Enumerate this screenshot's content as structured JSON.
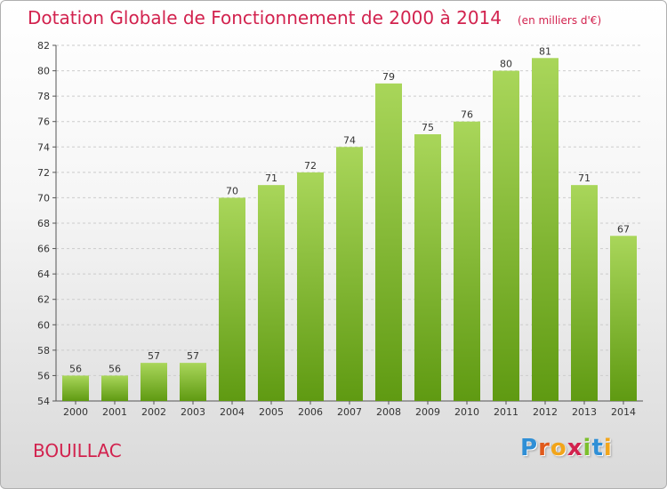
{
  "title": "Dotation Globale de Fonctionnement de 2000 à 2014",
  "unit_note": "(en milliers d'€)",
  "commune": "BOUILLAC",
  "logo": {
    "text": "Proxiti",
    "letters": [
      {
        "char": "P",
        "color": "#2f8fd6"
      },
      {
        "char": "r",
        "color": "#e05a1c"
      },
      {
        "char": "o",
        "color": "#f2a51a"
      },
      {
        "char": "x",
        "color": "#d2224e"
      },
      {
        "char": "i",
        "color": "#7cbf2c"
      },
      {
        "char": "t",
        "color": "#2f8fd6"
      },
      {
        "char": "i",
        "color": "#f2a51a"
      }
    ]
  },
  "colors": {
    "bar_light": "#a9d65a",
    "bar_dark": "#5f9a12",
    "title": "#d2224e",
    "grid": "#cccccc"
  },
  "chart_data": {
    "type": "bar",
    "title": "Dotation Globale de Fonctionnement de 2000 à 2014",
    "subtitle": "(en milliers d'€)",
    "xlabel": "",
    "ylabel": "",
    "categories": [
      "2000",
      "2001",
      "2002",
      "2003",
      "2004",
      "2005",
      "2006",
      "2007",
      "2008",
      "2009",
      "2010",
      "2011",
      "2012",
      "2013",
      "2014"
    ],
    "values": [
      56,
      56,
      57,
      57,
      70,
      71,
      72,
      74,
      79,
      75,
      76,
      80,
      81,
      71,
      67
    ],
    "ylim": [
      54,
      82
    ],
    "yticks": [
      54,
      56,
      58,
      60,
      62,
      64,
      66,
      68,
      70,
      72,
      74,
      76,
      78,
      80,
      82
    ],
    "grid": "horizontal dashed",
    "data_labels": true
  }
}
